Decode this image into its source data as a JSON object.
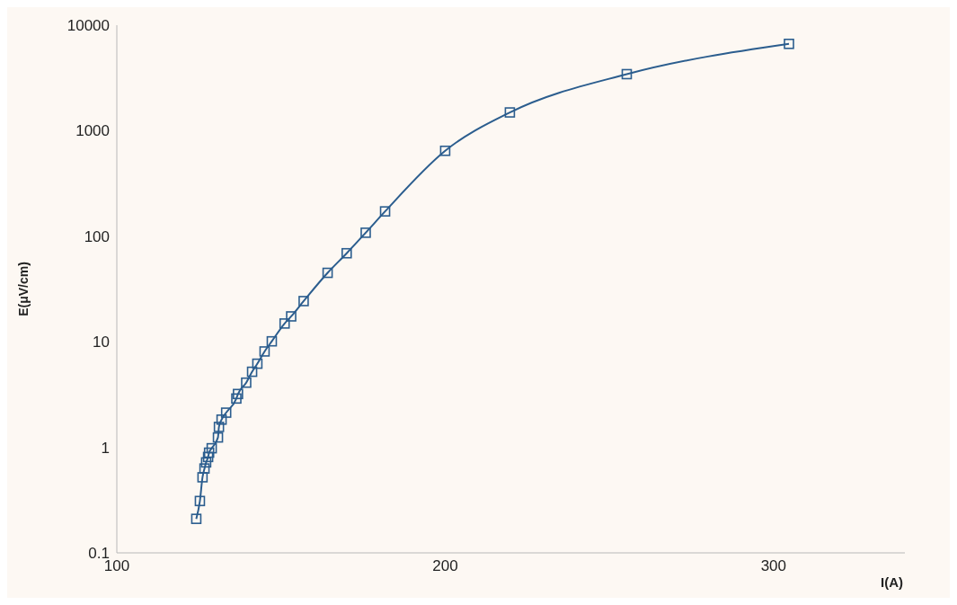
{
  "chart_data": {
    "type": "line",
    "xlabel": "I(A)",
    "ylabel": "E(μV/cm)",
    "log": "y",
    "marker": "square",
    "line_style": "solid",
    "xlim": [
      100,
      340
    ],
    "xticks": [
      100,
      200,
      300
    ],
    "ylim": [
      0.1,
      10000
    ],
    "yticks": [
      0.1,
      1,
      10,
      100,
      1000,
      10000
    ],
    "series": [
      {
        "color": "#2b5d8e",
        "x": [
          124.2,
          125.3,
          126.1,
          126.7,
          127.2,
          127.8,
          128.1,
          128.9,
          130.8,
          131.1,
          131.9,
          133.3,
          136.4,
          136.9,
          139.4,
          141.2,
          142.8,
          145,
          147.2,
          151.1,
          153.1,
          156.9,
          164.2,
          170,
          175.8,
          181.7,
          200,
          219.7,
          255.3,
          304.7
        ],
        "values": [
          0.21,
          0.31,
          0.52,
          0.63,
          0.72,
          0.81,
          0.89,
          0.98,
          1.24,
          1.56,
          1.83,
          2.13,
          2.9,
          3.2,
          4.1,
          5.2,
          6.2,
          8.1,
          10.1,
          14.9,
          17.4,
          24.3,
          45,
          69,
          108,
          172,
          645,
          1490,
          3435,
          6650
        ]
      }
    ]
  }
}
